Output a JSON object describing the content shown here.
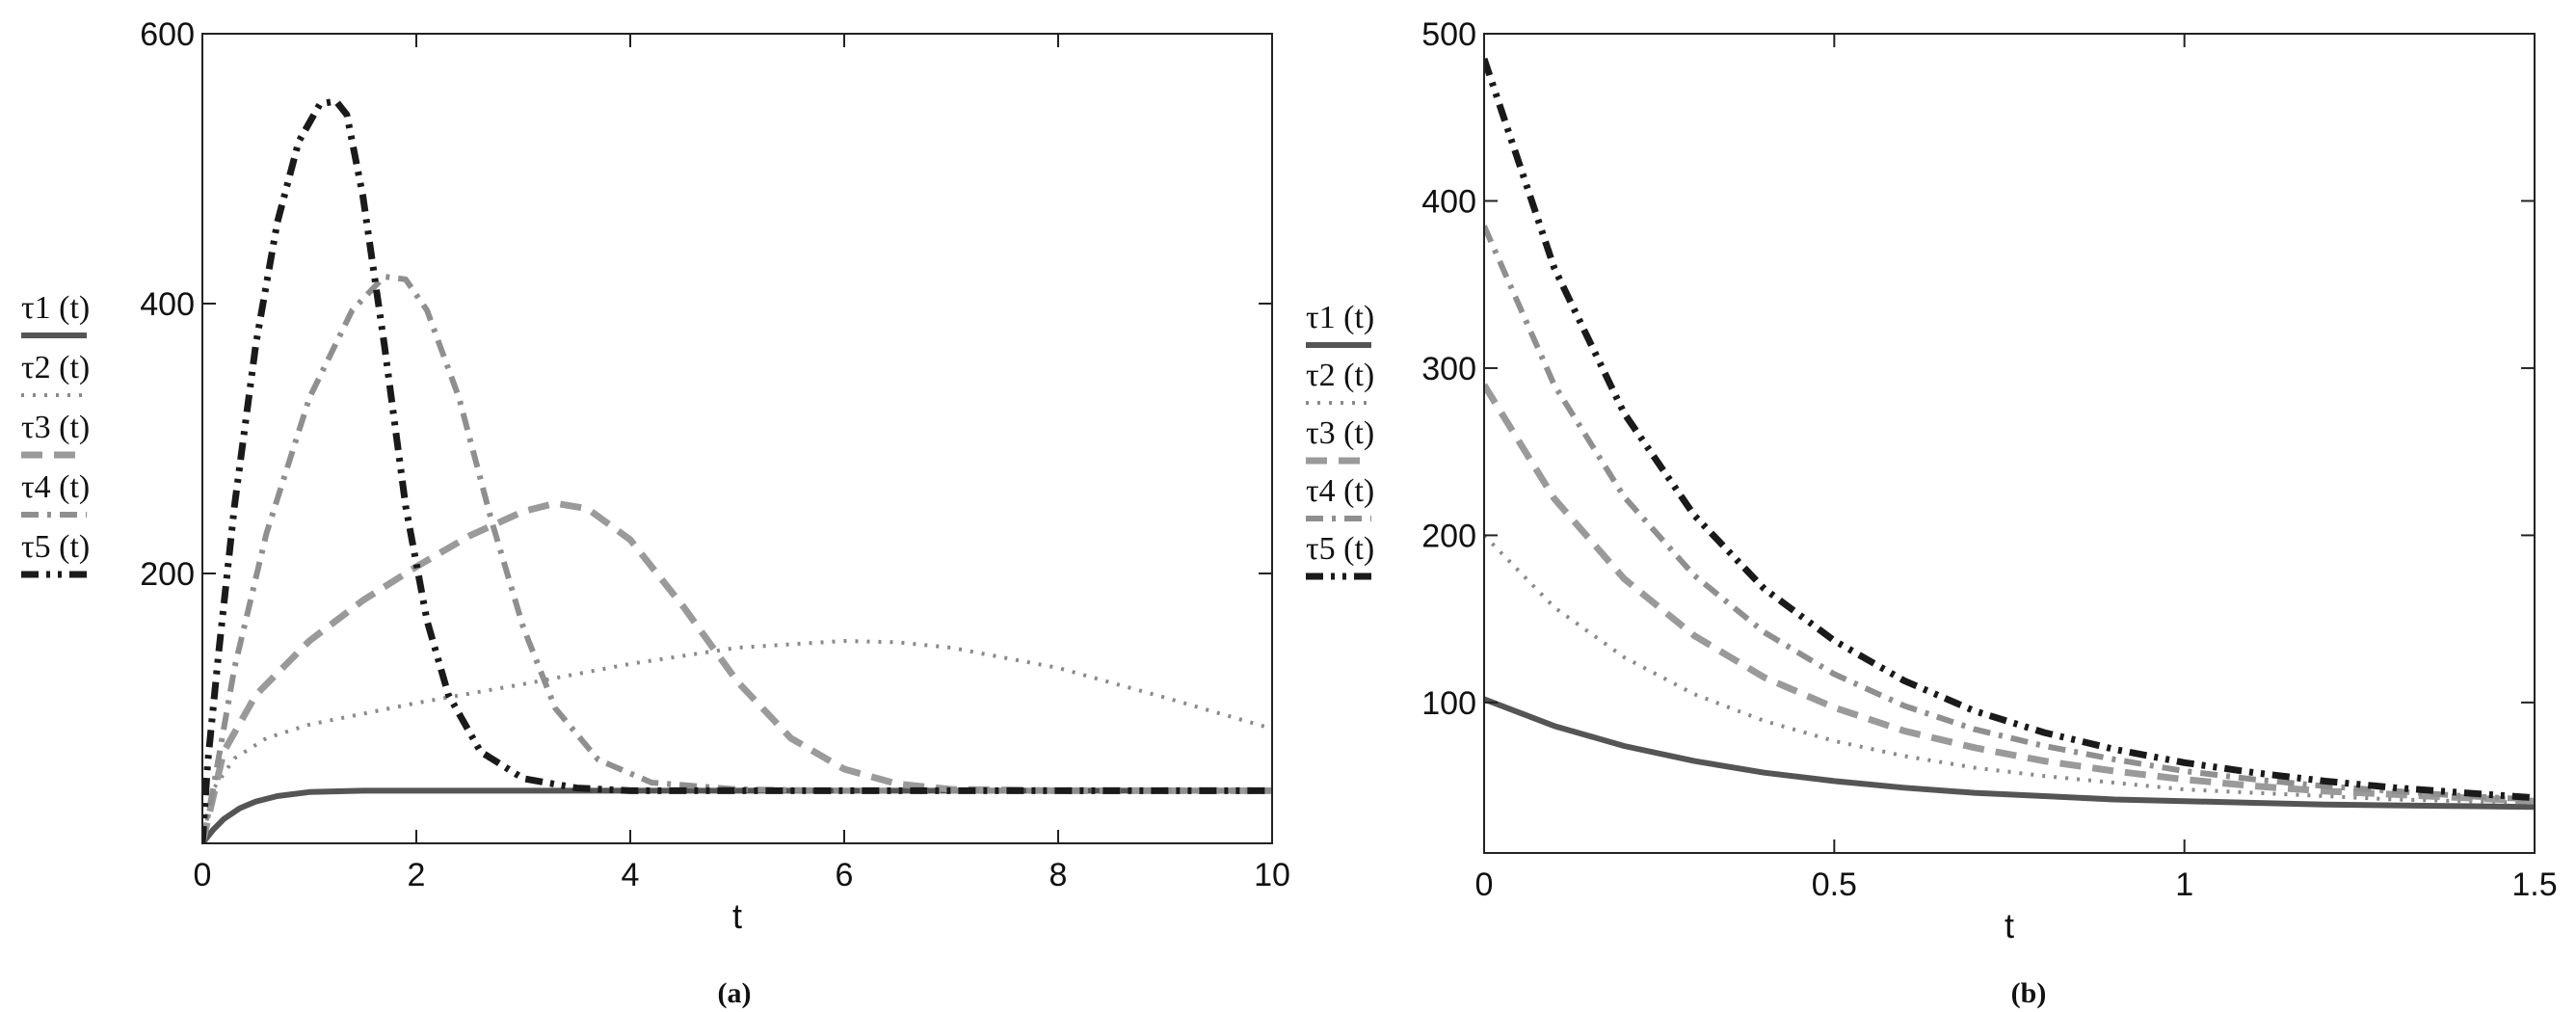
{
  "chart_data": [
    {
      "type": "line",
      "panel": "(a)",
      "caption": "(a)",
      "xlabel": "t",
      "ylabel": "",
      "xlim": [
        0,
        10
      ],
      "ylim": [
        0,
        600
      ],
      "xticks": [
        0,
        2,
        4,
        6,
        8,
        10
      ],
      "yticks": [
        200,
        400,
        600
      ],
      "ytick_labels": [
        "200",
        "400",
        "600"
      ],
      "xtick_labels": [
        "0",
        "2",
        "4",
        "6",
        "8",
        "10"
      ],
      "grid": false,
      "legend_position": "left",
      "series": [
        {
          "name": "τ1 (t)",
          "style": "solid",
          "x": [
            0,
            0.1,
            0.2,
            0.35,
            0.5,
            0.7,
            1.0,
            1.5,
            2,
            3,
            4,
            5,
            6,
            7,
            8,
            9,
            10
          ],
          "y": [
            0,
            10,
            18,
            26,
            31,
            35,
            38,
            39,
            39,
            39,
            39,
            39,
            39,
            39,
            39,
            39,
            39
          ]
        },
        {
          "name": "τ2 (t)",
          "style": "dotted",
          "x": [
            0,
            0.1,
            0.3,
            0.6,
            1,
            1.5,
            2,
            3,
            4,
            5,
            6,
            6.5,
            7,
            8,
            9,
            10
          ],
          "y": [
            0,
            40,
            63,
            78,
            88,
            96,
            104,
            118,
            133,
            145,
            150,
            149,
            145,
            130,
            108,
            85
          ]
        },
        {
          "name": "τ3 (t)",
          "style": "dashed",
          "x": [
            0,
            0.2,
            0.5,
            1,
            1.5,
            2,
            2.5,
            3,
            3.3,
            3.6,
            4,
            4.5,
            5,
            5.5,
            6,
            6.5,
            7,
            8,
            10
          ],
          "y": [
            0,
            68,
            110,
            150,
            180,
            205,
            228,
            246,
            252,
            248,
            225,
            175,
            120,
            78,
            55,
            44,
            40,
            39,
            39
          ]
        },
        {
          "name": "τ4 (t)",
          "style": "dash-dot",
          "x": [
            0,
            0.1,
            0.3,
            0.6,
            1,
            1.4,
            1.7,
            1.9,
            2.1,
            2.4,
            2.7,
            3,
            3.3,
            3.7,
            4.2,
            5,
            6,
            10
          ],
          "y": [
            0,
            40,
            130,
            230,
            330,
            395,
            420,
            418,
            395,
            330,
            240,
            160,
            100,
            62,
            45,
            40,
            39,
            39
          ]
        },
        {
          "name": "τ5 (t)",
          "style": "dash-dot-dot",
          "x": [
            0,
            0.05,
            0.15,
            0.3,
            0.5,
            0.7,
            0.9,
            1.1,
            1.25,
            1.35,
            1.5,
            1.7,
            1.9,
            2.1,
            2.3,
            2.6,
            3,
            3.5,
            4,
            10
          ],
          "y": [
            0,
            60,
            140,
            250,
            370,
            460,
            520,
            548,
            550,
            540,
            480,
            370,
            250,
            165,
            110,
            68,
            48,
            41,
            39,
            39
          ]
        }
      ]
    },
    {
      "type": "line",
      "panel": "(b)",
      "caption": "(b)",
      "xlabel": "t",
      "ylabel": "",
      "xlim": [
        0,
        1.5
      ],
      "ylim": [
        10,
        500
      ],
      "xticks": [
        0,
        0.5,
        1,
        1.5
      ],
      "yticks": [
        100,
        200,
        300,
        400,
        500
      ],
      "ytick_labels": [
        "100",
        "200",
        "300",
        "400",
        "500"
      ],
      "xtick_labels": [
        "0",
        "0.5",
        "1",
        "1.5"
      ],
      "grid": false,
      "legend_position": "left",
      "series": [
        {
          "name": "τ1 (t)",
          "style": "solid",
          "x": [
            0,
            0.1,
            0.2,
            0.3,
            0.4,
            0.5,
            0.6,
            0.7,
            0.8,
            0.9,
            1.0,
            1.1,
            1.2,
            1.3,
            1.4,
            1.5
          ],
          "y": [
            102,
            86,
            74,
            65,
            58,
            53,
            49,
            46,
            44,
            42,
            41,
            40,
            39,
            38.5,
            38,
            37.5
          ]
        },
        {
          "name": "τ2 (t)",
          "style": "dotted",
          "x": [
            0,
            0.1,
            0.2,
            0.3,
            0.4,
            0.5,
            0.6,
            0.7,
            0.8,
            0.9,
            1.0,
            1.1,
            1.2,
            1.3,
            1.4,
            1.5
          ],
          "y": [
            200,
            157,
            127,
            105,
            89,
            77,
            68,
            61,
            56,
            52,
            48,
            46,
            44,
            42,
            41,
            40
          ]
        },
        {
          "name": "τ3 (t)",
          "style": "dashed",
          "x": [
            0,
            0.1,
            0.2,
            0.3,
            0.4,
            0.5,
            0.6,
            0.7,
            0.8,
            0.9,
            1.0,
            1.1,
            1.2,
            1.3,
            1.4,
            1.5
          ],
          "y": [
            290,
            222,
            174,
            140,
            115,
            97,
            83,
            73,
            65,
            59,
            54,
            50,
            47,
            45,
            43,
            41
          ]
        },
        {
          "name": "τ4 (t)",
          "style": "dash-dot",
          "x": [
            0,
            0.1,
            0.2,
            0.3,
            0.4,
            0.5,
            0.6,
            0.7,
            0.8,
            0.9,
            1.0,
            1.1,
            1.2,
            1.3,
            1.4,
            1.5
          ],
          "y": [
            385,
            290,
            223,
            176,
            142,
            117,
            98,
            84,
            74,
            66,
            59,
            54,
            50,
            47,
            44,
            42
          ]
        },
        {
          "name": "τ5 (t)",
          "style": "dash-dot-dot",
          "x": [
            0,
            0.1,
            0.2,
            0.3,
            0.4,
            0.5,
            0.6,
            0.7,
            0.8,
            0.9,
            1.0,
            1.1,
            1.2,
            1.3,
            1.4,
            1.5
          ],
          "y": [
            485,
            360,
            273,
            212,
            168,
            137,
            113,
            95,
            82,
            72,
            64,
            58,
            53,
            49,
            46,
            43
          ]
        }
      ]
    }
  ],
  "styles": {
    "solid": {
      "color": "#555555",
      "dash": "",
      "width": 6
    },
    "dotted": {
      "color": "#8a8a8a",
      "dash": "3 9",
      "width": 4
    },
    "dashed": {
      "color": "#9a9a9a",
      "dash": "22 12",
      "width": 7
    },
    "dash-dot": {
      "color": "#8f8f8f",
      "dash": "18 9 4 9",
      "width": 6
    },
    "dash-dot-dot": {
      "color": "#1a1a1a",
      "dash": "18 8 4 8 4 8",
      "width": 7
    }
  }
}
